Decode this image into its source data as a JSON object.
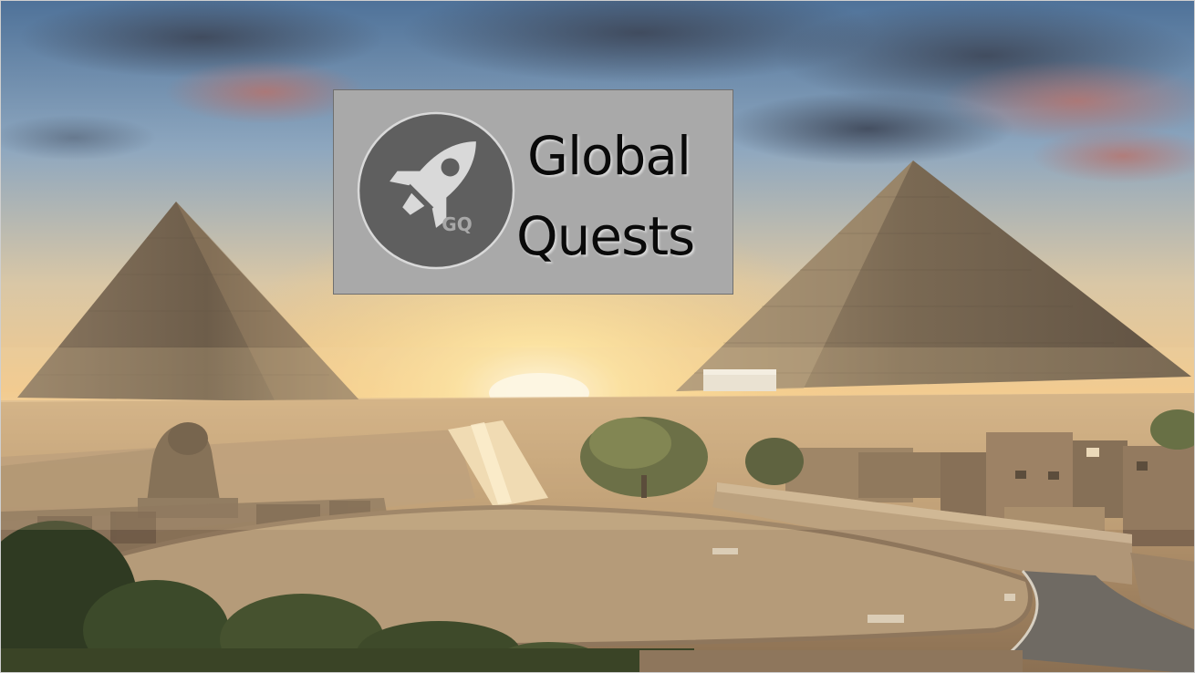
{
  "logo": {
    "title_line1": "Global",
    "title_line2": "Quests",
    "badge_initials": "GQ",
    "badge_icon": "rocket-icon"
  },
  "colors": {
    "logo_box": "#a9a9a9",
    "badge_circle": "#5f5f5f",
    "sky_top": "#5a7ea6",
    "sun_glow": "#fff4c8"
  }
}
